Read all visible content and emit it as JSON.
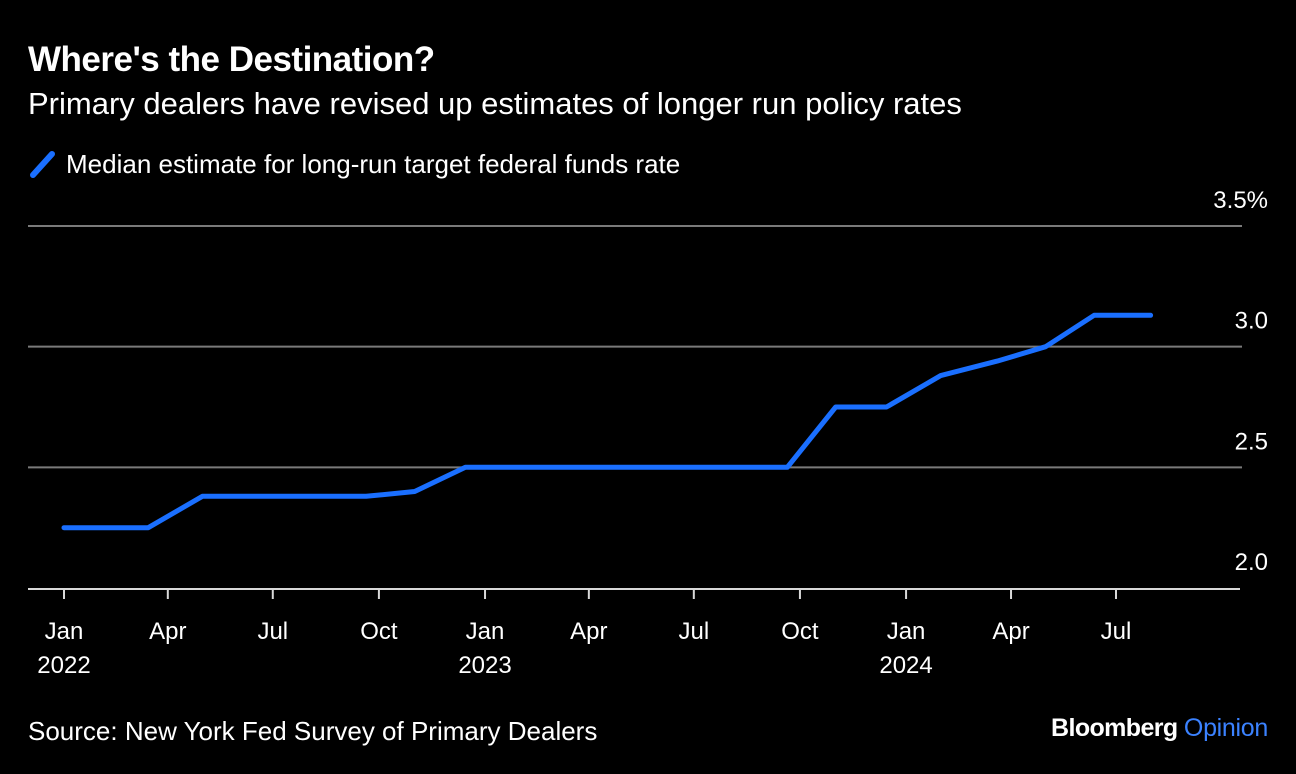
{
  "header": {
    "title": "Where's the Destination?",
    "subtitle": "Primary dealers have revised up estimates of longer run policy rates"
  },
  "footer": {
    "source": "Source: New York Fed Survey of Primary Dealers",
    "brand_primary": "Bloomberg",
    "brand_secondary": "Opinion"
  },
  "colors": {
    "background": "#000000",
    "series": "#1a6fff",
    "grid": "#7a7a7a",
    "text": "#ffffff",
    "brand_accent": "#3b82ff"
  },
  "chart_data": {
    "type": "line",
    "title": "Where's the Destination?",
    "subtitle": "Primary dealers have revised up estimates of longer run policy rates",
    "xlabel": "",
    "ylabel": "",
    "y_unit": "%",
    "ylim": [
      2.0,
      3.5
    ],
    "y_ticks": [
      {
        "value": 2.0,
        "label": "2.0"
      },
      {
        "value": 2.5,
        "label": "2.5"
      },
      {
        "value": 3.0,
        "label": "3.0"
      },
      {
        "value": 3.5,
        "label": "3.5%"
      }
    ],
    "xlim": [
      "2021-12-01",
      "2024-10-15"
    ],
    "x_ticks": [
      {
        "date": "2022-01-01",
        "label": "Jan",
        "year": "2022"
      },
      {
        "date": "2022-04-01",
        "label": "Apr",
        "year": ""
      },
      {
        "date": "2022-07-01",
        "label": "Jul",
        "year": ""
      },
      {
        "date": "2022-10-01",
        "label": "Oct",
        "year": ""
      },
      {
        "date": "2023-01-01",
        "label": "Jan",
        "year": "2023"
      },
      {
        "date": "2023-04-01",
        "label": "Apr",
        "year": ""
      },
      {
        "date": "2023-07-01",
        "label": "Jul",
        "year": ""
      },
      {
        "date": "2023-10-01",
        "label": "Oct",
        "year": ""
      },
      {
        "date": "2024-01-01",
        "label": "Jan",
        "year": "2024"
      },
      {
        "date": "2024-04-01",
        "label": "Apr",
        "year": ""
      },
      {
        "date": "2024-07-01",
        "label": "Jul",
        "year": ""
      }
    ],
    "grid": true,
    "legend": "top-left",
    "series": [
      {
        "name": "Median estimate for long-run target federal funds rate",
        "color": "#1a6fff",
        "points": [
          {
            "x": "2022-01-01",
            "y": 2.25
          },
          {
            "x": "2022-03-15",
            "y": 2.25
          },
          {
            "x": "2022-05-01",
            "y": 2.38
          },
          {
            "x": "2022-06-15",
            "y": 2.38
          },
          {
            "x": "2022-07-25",
            "y": 2.38
          },
          {
            "x": "2022-09-20",
            "y": 2.38
          },
          {
            "x": "2022-11-01",
            "y": 2.4
          },
          {
            "x": "2022-12-15",
            "y": 2.5
          },
          {
            "x": "2023-02-01",
            "y": 2.5
          },
          {
            "x": "2023-03-20",
            "y": 2.5
          },
          {
            "x": "2023-05-01",
            "y": 2.5
          },
          {
            "x": "2023-06-15",
            "y": 2.5
          },
          {
            "x": "2023-07-25",
            "y": 2.5
          },
          {
            "x": "2023-09-20",
            "y": 2.5
          },
          {
            "x": "2023-11-01",
            "y": 2.75
          },
          {
            "x": "2023-12-15",
            "y": 2.75
          },
          {
            "x": "2024-01-31",
            "y": 2.88
          },
          {
            "x": "2024-03-20",
            "y": 2.94
          },
          {
            "x": "2024-05-01",
            "y": 3.0
          },
          {
            "x": "2024-06-12",
            "y": 3.13
          },
          {
            "x": "2024-07-31",
            "y": 3.13
          }
        ]
      }
    ]
  }
}
